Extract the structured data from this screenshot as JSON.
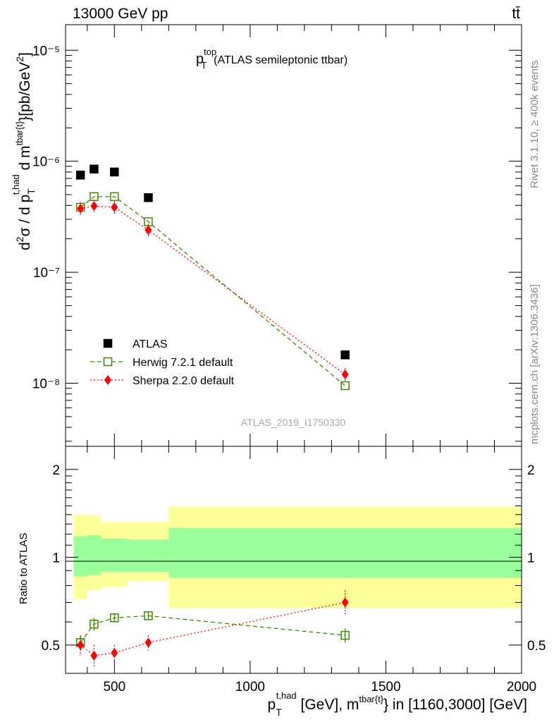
{
  "header": {
    "left": "13000 GeV pp",
    "right": "tt̄"
  },
  "title": {
    "main": "p",
    "sup": "top",
    "sub": "T",
    "rest": "(ATLAS semileptonic ttbar)"
  },
  "side_labels": {
    "rivet": "Rivet 3.1.10, ≥ 400k events",
    "mcplots": "mcplots.cern.ch [arXiv:1306.3436]"
  },
  "watermark": "ATLAS_2019_I1750330",
  "axis_labels": {
    "y_top": "d²σ / d p_T^{t,had} d m^{tbar{t}} [pb/GeV²]",
    "y_bottom": "Ratio to ATLAS",
    "x": "p_T^{t,had} [GeV], m^{tbar{t}} in [1160,3000] [GeV]"
  },
  "ticks": {
    "x": [
      "500",
      "1000",
      "1500",
      "2000"
    ],
    "y_top": [
      "10⁻⁸",
      "10⁻⁷",
      "10⁻⁶",
      "10⁻⁵"
    ],
    "y_bottom": [
      "0.5",
      "1",
      "2"
    ]
  },
  "legend": [
    {
      "label": "ATLAS",
      "color": "#000000",
      "marker": "filled-square"
    },
    {
      "label": "Herwig 7.2.1 default",
      "color": "#3c8c00",
      "marker": "open-square",
      "line": "dashed"
    },
    {
      "label": "Sherpa 2.2.0 default",
      "color": "#ff0000",
      "marker": "diamond",
      "line": "dotted"
    }
  ],
  "chart_data": [
    {
      "type": "scatter",
      "title": "p_T^top (ATLAS semileptonic ttbar)",
      "xlabel": "p_T^{t,had} [GeV], m^{tbar{t}} in [1160,3000] [GeV]",
      "ylabel": "d²σ / d p_T^{t,had} d m^{tbar{t}} [pb/GeV²]",
      "xlim": [
        320,
        2000
      ],
      "ylim": [
        2.7e-09,
        1.7e-05
      ],
      "yscale": "log",
      "x": [
        375,
        425,
        500,
        625,
        1350
      ],
      "series": [
        {
          "name": "ATLAS",
          "values": [
            7.5e-07,
            8.5e-07,
            8e-07,
            4.7e-07,
            1.8e-08
          ]
        },
        {
          "name": "Herwig 7.2.1 default",
          "values": [
            3.85e-07,
            4.8e-07,
            4.8e-07,
            2.85e-07,
            9.5e-09
          ]
        },
        {
          "name": "Sherpa 2.2.0 default",
          "values": [
            3.75e-07,
            3.95e-07,
            3.85e-07,
            2.4e-07,
            1.2e-08
          ]
        }
      ]
    },
    {
      "type": "line",
      "ylabel": "Ratio to ATLAS",
      "xlim": [
        320,
        2000
      ],
      "ylim": [
        0.4,
        2.4
      ],
      "yscale": "log",
      "x": [
        375,
        425,
        500,
        625,
        1350
      ],
      "series": [
        {
          "name": "Herwig 7.2.1 default",
          "values": [
            0.51,
            0.59,
            0.62,
            0.63,
            0.54
          ],
          "errors": [
            0.03,
            0.03,
            0.02,
            0.02,
            0.03
          ]
        },
        {
          "name": "Sherpa 2.2.0 default",
          "values": [
            0.5,
            0.46,
            0.47,
            0.51,
            0.7
          ],
          "errors": [
            0.04,
            0.04,
            0.03,
            0.03,
            0.07
          ]
        }
      ],
      "bands": {
        "x_edges": [
          350,
          400,
          450,
          550,
          700,
          2000
        ],
        "inner": [
          [
            0.86,
            1.18
          ],
          [
            0.87,
            1.19
          ],
          [
            0.89,
            1.16
          ],
          [
            0.89,
            1.15
          ],
          [
            0.85,
            1.26
          ],
          [
            0.85,
            1.26
          ]
        ],
        "outer": [
          [
            0.72,
            1.4
          ],
          [
            0.77,
            1.39
          ],
          [
            0.79,
            1.32
          ],
          [
            0.83,
            1.32
          ],
          [
            0.67,
            1.49
          ],
          [
            0.67,
            1.49
          ]
        ],
        "inner_color": "#99ff99",
        "outer_color": "#ffff99"
      }
    }
  ]
}
